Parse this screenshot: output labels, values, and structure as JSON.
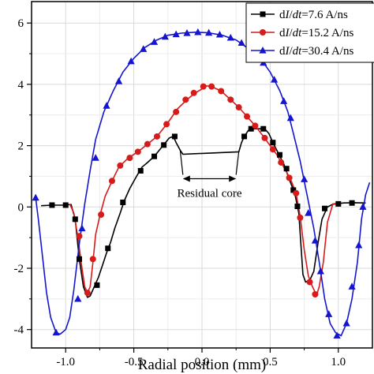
{
  "chart_data": {
    "type": "line",
    "title": "",
    "xlabel": "Radial position (mm)",
    "ylabel": "",
    "xlim": [
      -1.25,
      1.25
    ],
    "ylim": [
      -4.6,
      6.7
    ],
    "grid": true,
    "legend_position": "top-right",
    "xticks": [
      -1.0,
      -0.5,
      0.0,
      0.5,
      1.0
    ],
    "xtick_labels": [
      "-1.0",
      "-0.5",
      "0.0",
      "0.5",
      "1.0"
    ],
    "yticks": [
      -4,
      -2,
      0,
      2,
      4,
      6
    ],
    "ytick_labels": [
      "-4",
      "-2",
      "0",
      "2",
      "4",
      "6"
    ],
    "annotation": "Residual core",
    "series": [
      {
        "name": "dI/dt=7.6 A/ns",
        "legend_parts": [
          "d",
          "I",
          "/",
          "dt",
          "=7.6 A/ns"
        ],
        "color": "#000000",
        "marker": "square",
        "points": [
          [
            -1.18,
            0.04
          ],
          [
            -1.1,
            0.06
          ],
          [
            -1.02,
            0.06
          ],
          [
            -0.96,
            0.08
          ],
          [
            -0.93,
            -0.4
          ],
          [
            -0.9,
            -1.7
          ],
          [
            -0.87,
            -2.6
          ],
          [
            -0.84,
            -2.95
          ],
          [
            -0.82,
            -2.9
          ],
          [
            -0.79,
            -2.6
          ],
          [
            -0.76,
            -2.3
          ],
          [
            -0.73,
            -1.9
          ],
          [
            -0.7,
            -1.5
          ],
          [
            -0.67,
            -1.15
          ],
          [
            -0.64,
            -0.7
          ],
          [
            -0.6,
            -0.2
          ],
          [
            -0.57,
            0.2
          ],
          [
            -0.53,
            0.6
          ],
          [
            -0.48,
            1.0
          ],
          [
            -0.44,
            1.3
          ],
          [
            -0.4,
            1.45
          ],
          [
            -0.35,
            1.65
          ],
          [
            -0.29,
            1.98
          ],
          [
            -0.24,
            2.25
          ],
          [
            -0.21,
            2.3
          ],
          [
            -0.19,
            2.1
          ],
          [
            -0.16,
            1.85
          ],
          [
            -0.14,
            1.72
          ],
          [
            0.27,
            1.8
          ],
          [
            0.29,
            2.1
          ],
          [
            0.31,
            2.3
          ],
          [
            0.34,
            2.5
          ],
          [
            0.38,
            2.55
          ],
          [
            0.42,
            2.55
          ],
          [
            0.46,
            2.55
          ],
          [
            0.49,
            2.4
          ],
          [
            0.52,
            2.1
          ],
          [
            0.56,
            1.75
          ],
          [
            0.6,
            1.4
          ],
          [
            0.64,
            0.9
          ],
          [
            0.68,
            0.45
          ],
          [
            0.71,
            -0.2
          ],
          [
            0.73,
            -1.5
          ],
          [
            0.74,
            -2.2
          ],
          [
            0.76,
            -2.45
          ],
          [
            0.79,
            -2.4
          ],
          [
            0.82,
            -2.1
          ],
          [
            0.85,
            -1.2
          ],
          [
            0.88,
            -0.4
          ],
          [
            0.92,
            0.0
          ],
          [
            0.96,
            0.09
          ],
          [
            1.04,
            0.13
          ],
          [
            1.12,
            0.14
          ],
          [
            1.2,
            0.13
          ]
        ],
        "markers": [
          [
            -1.1,
            0.06
          ],
          [
            -1.0,
            0.06
          ],
          [
            -0.93,
            -0.4
          ],
          [
            -0.9,
            -1.7
          ],
          [
            -0.77,
            -2.55
          ],
          [
            -0.69,
            -1.35
          ],
          [
            -0.58,
            0.15
          ],
          [
            -0.45,
            1.18
          ],
          [
            -0.35,
            1.65
          ],
          [
            -0.28,
            2.02
          ],
          [
            -0.2,
            2.3
          ],
          [
            0.31,
            2.3
          ],
          [
            0.36,
            2.55
          ],
          [
            0.45,
            2.55
          ],
          [
            0.52,
            2.1
          ],
          [
            0.57,
            1.7
          ],
          [
            0.62,
            1.25
          ],
          [
            0.67,
            0.55
          ],
          [
            0.7,
            0.02
          ],
          [
            0.9,
            -0.05
          ],
          [
            1.0,
            0.1
          ],
          [
            1.1,
            0.13
          ]
        ]
      },
      {
        "name": "dI/dt=15.2 A/ns",
        "legend_parts": [
          "d",
          "I",
          "/",
          "dt",
          "=15.2 A/ns"
        ],
        "color": "#d71a1a",
        "marker": "circle",
        "points": [
          [
            -0.97,
            0.1
          ],
          [
            -0.94,
            -0.2
          ],
          [
            -0.91,
            -1.0
          ],
          [
            -0.88,
            -2.0
          ],
          [
            -0.86,
            -2.6
          ],
          [
            -0.84,
            -2.8
          ],
          [
            -0.82,
            -2.6
          ],
          [
            -0.8,
            -1.8
          ],
          [
            -0.78,
            -0.9
          ],
          [
            -0.75,
            -0.3
          ],
          [
            -0.71,
            0.35
          ],
          [
            -0.66,
            0.85
          ],
          [
            -0.61,
            1.3
          ],
          [
            -0.54,
            1.6
          ],
          [
            -0.47,
            1.8
          ],
          [
            -0.4,
            2.05
          ],
          [
            -0.33,
            2.3
          ],
          [
            -0.25,
            2.75
          ],
          [
            -0.18,
            3.2
          ],
          [
            -0.11,
            3.5
          ],
          [
            -0.05,
            3.72
          ],
          [
            0.0,
            3.85
          ],
          [
            0.03,
            3.95
          ],
          [
            0.07,
            3.93
          ],
          [
            0.14,
            3.78
          ],
          [
            0.21,
            3.5
          ],
          [
            0.27,
            3.25
          ],
          [
            0.33,
            2.95
          ],
          [
            0.39,
            2.65
          ],
          [
            0.45,
            2.3
          ],
          [
            0.5,
            2.0
          ],
          [
            0.55,
            1.7
          ],
          [
            0.6,
            1.3
          ],
          [
            0.65,
            0.9
          ],
          [
            0.69,
            0.45
          ],
          [
            0.72,
            -0.3
          ],
          [
            0.75,
            -1.4
          ],
          [
            0.78,
            -2.25
          ],
          [
            0.81,
            -2.6
          ],
          [
            0.84,
            -2.88
          ],
          [
            0.86,
            -2.6
          ],
          [
            0.89,
            -1.8
          ],
          [
            0.92,
            -0.5
          ],
          [
            0.96,
            0.1
          ],
          [
            1.0,
            0.12
          ]
        ],
        "markers": [
          [
            -0.9,
            -0.95
          ],
          [
            -0.84,
            -2.8
          ],
          [
            -0.8,
            -1.7
          ],
          [
            -0.74,
            -0.25
          ],
          [
            -0.66,
            0.85
          ],
          [
            -0.6,
            1.35
          ],
          [
            -0.53,
            1.6
          ],
          [
            -0.47,
            1.8
          ],
          [
            -0.4,
            2.05
          ],
          [
            -0.33,
            2.3
          ],
          [
            -0.26,
            2.7
          ],
          [
            -0.19,
            3.1
          ],
          [
            -0.12,
            3.5
          ],
          [
            -0.06,
            3.72
          ],
          [
            0.01,
            3.93
          ],
          [
            0.07,
            3.93
          ],
          [
            0.14,
            3.78
          ],
          [
            0.21,
            3.5
          ],
          [
            0.27,
            3.25
          ],
          [
            0.33,
            2.95
          ],
          [
            0.39,
            2.65
          ],
          [
            0.46,
            2.25
          ],
          [
            0.52,
            1.88
          ],
          [
            0.58,
            1.45
          ],
          [
            0.64,
            0.95
          ],
          [
            0.69,
            0.45
          ],
          [
            0.72,
            -0.35
          ],
          [
            0.79,
            -2.45
          ],
          [
            0.83,
            -2.85
          ]
        ]
      },
      {
        "name": "dI/dt=30.4 A/ns",
        "legend_parts": [
          "d",
          "I",
          "/",
          "dt",
          "=30.4 A/ns"
        ],
        "color": "#1515d0",
        "marker": "triangle",
        "points": [
          [
            -1.22,
            0.3
          ],
          [
            -1.2,
            -0.4
          ],
          [
            -1.17,
            -1.6
          ],
          [
            -1.14,
            -2.8
          ],
          [
            -1.11,
            -3.6
          ],
          [
            -1.07,
            -4.1
          ],
          [
            -1.04,
            -4.15
          ],
          [
            -1.0,
            -4.0
          ],
          [
            -0.97,
            -3.6
          ],
          [
            -0.94,
            -2.7
          ],
          [
            -0.9,
            -1.2
          ],
          [
            -0.86,
            0.1
          ],
          [
            -0.82,
            1.2
          ],
          [
            -0.78,
            2.2
          ],
          [
            -0.72,
            3.1
          ],
          [
            -0.65,
            3.8
          ],
          [
            -0.58,
            4.4
          ],
          [
            -0.5,
            4.85
          ],
          [
            -0.42,
            5.2
          ],
          [
            -0.33,
            5.45
          ],
          [
            -0.25,
            5.6
          ],
          [
            -0.15,
            5.67
          ],
          [
            -0.05,
            5.7
          ],
          [
            0.05,
            5.68
          ],
          [
            0.15,
            5.6
          ],
          [
            0.25,
            5.45
          ],
          [
            0.33,
            5.2
          ],
          [
            0.42,
            4.9
          ],
          [
            0.5,
            4.4
          ],
          [
            0.57,
            3.8
          ],
          [
            0.63,
            3.1
          ],
          [
            0.67,
            2.4
          ],
          [
            0.72,
            1.5
          ],
          [
            0.77,
            0.4
          ],
          [
            0.82,
            -0.7
          ],
          [
            0.86,
            -1.8
          ],
          [
            0.9,
            -3.0
          ],
          [
            0.94,
            -3.8
          ],
          [
            0.98,
            -4.1
          ],
          [
            1.02,
            -4.2
          ],
          [
            1.06,
            -3.8
          ],
          [
            1.1,
            -3.0
          ],
          [
            1.14,
            -1.8
          ],
          [
            1.17,
            -0.4
          ],
          [
            1.2,
            0.4
          ],
          [
            1.23,
            0.8
          ]
        ],
        "markers": [
          [
            -1.22,
            0.3
          ],
          [
            -1.07,
            -4.1
          ],
          [
            -0.91,
            -3.0
          ],
          [
            -0.88,
            -0.7
          ],
          [
            -0.78,
            1.6
          ],
          [
            -0.7,
            3.3
          ],
          [
            -0.61,
            4.1
          ],
          [
            -0.52,
            4.75
          ],
          [
            -0.43,
            5.15
          ],
          [
            -0.35,
            5.38
          ],
          [
            -0.27,
            5.55
          ],
          [
            -0.19,
            5.63
          ],
          [
            -0.11,
            5.67
          ],
          [
            -0.03,
            5.7
          ],
          [
            0.05,
            5.68
          ],
          [
            0.13,
            5.62
          ],
          [
            0.21,
            5.52
          ],
          [
            0.29,
            5.35
          ],
          [
            0.37,
            5.1
          ],
          [
            0.45,
            4.7
          ],
          [
            0.53,
            4.15
          ],
          [
            0.6,
            3.45
          ],
          [
            0.65,
            2.9
          ],
          [
            0.75,
            0.9
          ],
          [
            0.78,
            -0.2
          ],
          [
            0.83,
            -1.1
          ],
          [
            0.87,
            -2.1
          ],
          [
            0.93,
            -3.5
          ],
          [
            0.99,
            -4.2
          ],
          [
            1.06,
            -3.8
          ],
          [
            1.1,
            -2.6
          ],
          [
            1.15,
            -1.25
          ],
          [
            1.18,
            0.0
          ]
        ]
      }
    ],
    "annotation_arrows": [
      {
        "from": [
          -0.16,
          1.85
        ],
        "to": [
          -0.14,
          1.05
        ]
      },
      {
        "from": [
          0.27,
          1.8
        ],
        "to": [
          0.25,
          1.05
        ]
      }
    ]
  }
}
